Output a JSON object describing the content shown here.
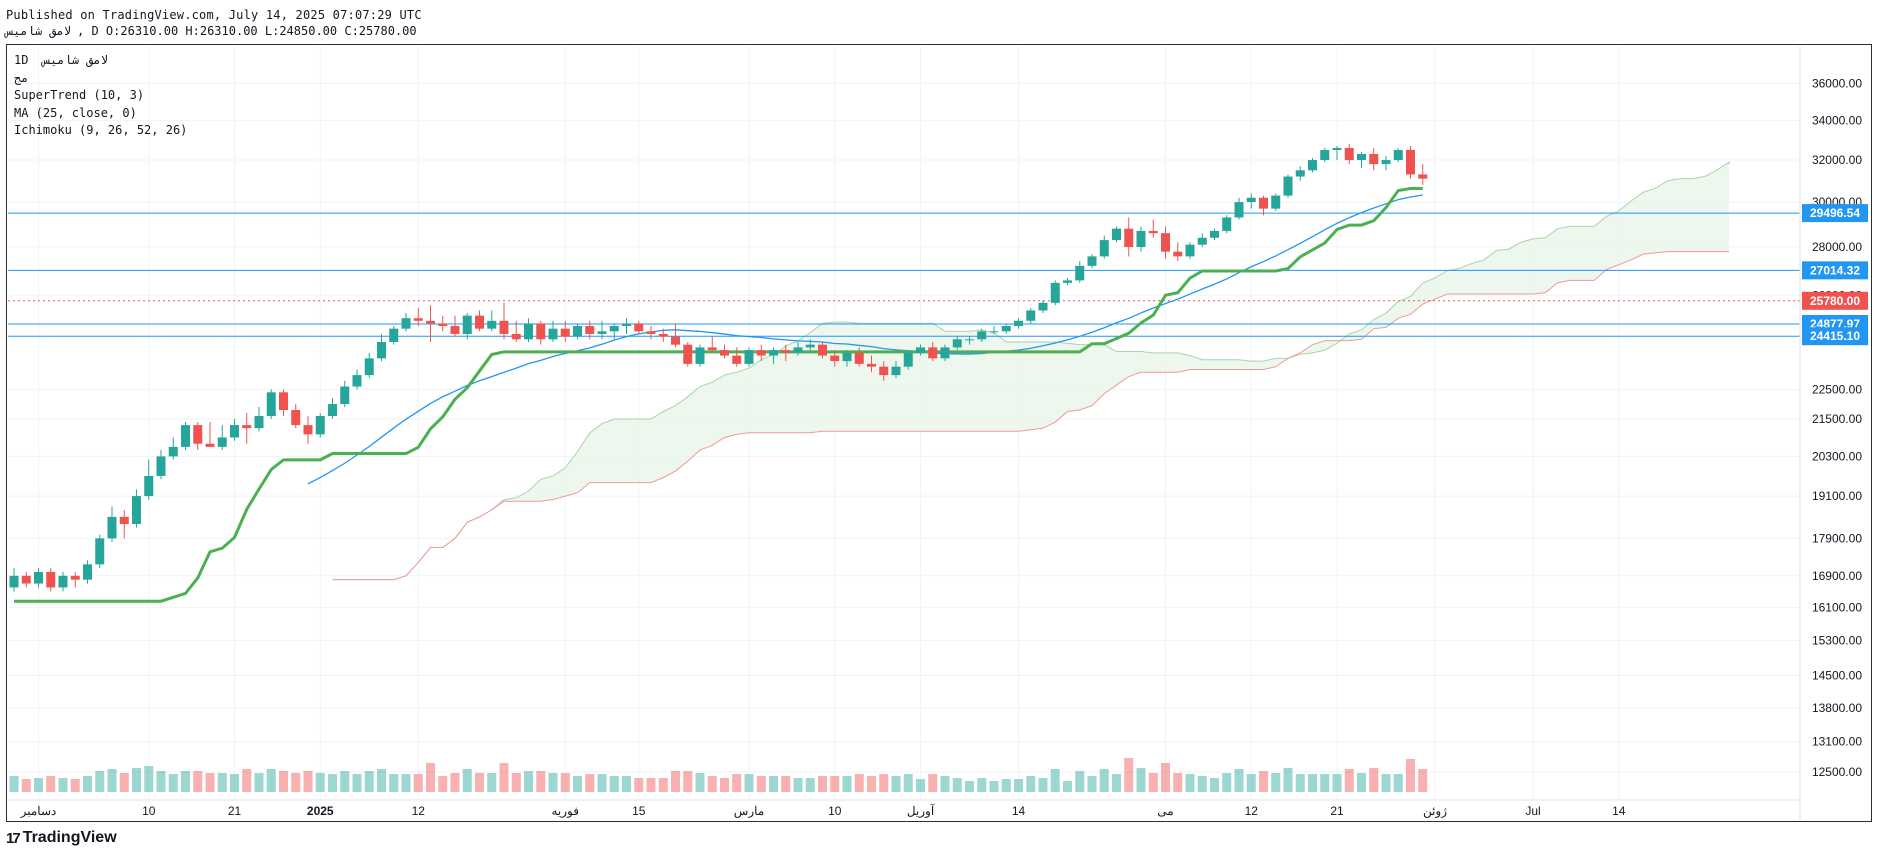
{
  "header": {
    "published": "Published on TradingView.com, July 14, 2025 07:07:29 UTC",
    "symbol": "لامق شامیس",
    "ohlc": ", D O:26310.00 H:26310.00 L:24850.00 C:25780.00"
  },
  "legend": {
    "symbol_line": "1D  لامق شامیس",
    "sub": "مج",
    "supertrend": "SuperTrend (10, 3)",
    "ma": "MA (25, close, 0)",
    "ichimoku": "Ichimoku (9, 26, 52, 26)"
  },
  "footer": {
    "logo_text": "TradingView",
    "logo_mark": "17"
  },
  "colors": {
    "up": "#26a69a",
    "down": "#ef5350",
    "supertrend_up": "#4caf50",
    "supertrend_down": "#a94442",
    "ma": "#2196f3",
    "cloud": "#e8f5e9",
    "cloud_line": "#a5d6a7",
    "span_b": "#ef9a9a",
    "hline": "#2196f3",
    "price_line": "#ef5350"
  },
  "chart_data": {
    "type": "candlestick",
    "y_axis": {
      "scale": "log",
      "range": [
        12200,
        37200
      ],
      "ticks": [
        36000,
        34000,
        32000,
        30000,
        28000,
        26000,
        22500,
        21500,
        20300,
        19100,
        17900,
        16900,
        16100,
        15300,
        14500,
        13800,
        13100,
        12500
      ],
      "tick_labels": [
        "36000.00",
        "34000.00",
        "32000.00",
        "30000.00",
        "28000.00",
        "26000.00",
        "22500.00",
        "21500.00",
        "20300.00",
        "19100.00",
        "17900.00",
        "16900.00",
        "16100.00",
        "15300.00",
        "14500.00",
        "13800.00",
        "13100.00",
        "12500.00"
      ]
    },
    "x_axis": {
      "labels": [
        "دسامبر",
        "10",
        "21",
        "2025",
        "12",
        "فوریه",
        "15",
        "مارس",
        "10",
        "آوریل",
        "14",
        "می",
        "12",
        "21",
        "ژوئن",
        "Jul",
        "14"
      ],
      "label_bar_index": [
        2,
        11,
        18,
        25,
        33,
        45,
        51,
        60,
        67,
        74,
        82,
        94,
        101,
        108,
        116,
        124,
        131
      ],
      "bold_index": [
        3
      ]
    },
    "horizontal_levels": [
      {
        "value": 29496.54,
        "label": "29496.54"
      },
      {
        "value": 27014.32,
        "label": "27014.32"
      },
      {
        "value": 24877.97,
        "label": "24877.97"
      },
      {
        "value": 24415.1,
        "label": "24415.10"
      }
    ],
    "last_price": {
      "value": 25780.0,
      "label": "25780.00"
    },
    "candles": [
      [
        16600,
        17100,
        16500,
        16900
      ],
      [
        16900,
        17000,
        16600,
        16700
      ],
      [
        16700,
        17100,
        16600,
        17000
      ],
      [
        17000,
        17100,
        16500,
        16600
      ],
      [
        16600,
        17000,
        16500,
        16900
      ],
      [
        16900,
        17000,
        16600,
        16800
      ],
      [
        16800,
        17300,
        16700,
        17200
      ],
      [
        17200,
        18000,
        17100,
        17900
      ],
      [
        17900,
        18800,
        17800,
        18500
      ],
      [
        18500,
        18700,
        17900,
        18300
      ],
      [
        18300,
        19300,
        18200,
        19100
      ],
      [
        19100,
        20200,
        19000,
        19700
      ],
      [
        19700,
        20500,
        19600,
        20300
      ],
      [
        20300,
        20900,
        20200,
        20600
      ],
      [
        20600,
        21400,
        20500,
        21300
      ],
      [
        21300,
        21400,
        20500,
        20700
      ],
      [
        20700,
        21400,
        20600,
        20600
      ],
      [
        20600,
        21300,
        20500,
        20900
      ],
      [
        20900,
        21500,
        20800,
        21300
      ],
      [
        21300,
        21700,
        20700,
        21200
      ],
      [
        21200,
        21900,
        21100,
        21600
      ],
      [
        21600,
        22500,
        21500,
        22400
      ],
      [
        22400,
        22500,
        21600,
        21800
      ],
      [
        21800,
        22000,
        21200,
        21300
      ],
      [
        21300,
        21600,
        20700,
        21000
      ],
      [
        21000,
        21700,
        20900,
        21600
      ],
      [
        21600,
        22200,
        21500,
        22000
      ],
      [
        22000,
        22800,
        21900,
        22600
      ],
      [
        22600,
        23200,
        22500,
        23000
      ],
      [
        23000,
        23800,
        22900,
        23600
      ],
      [
        23600,
        24500,
        23500,
        24200
      ],
      [
        24200,
        24800,
        24100,
        24700
      ],
      [
        24700,
        25300,
        24600,
        25100
      ],
      [
        25100,
        25500,
        24800,
        25000
      ],
      [
        25000,
        25600,
        24200,
        24900
      ],
      [
        24900,
        25200,
        24600,
        24800
      ],
      [
        24800,
        25200,
        24400,
        24500
      ],
      [
        24500,
        25300,
        24300,
        25200
      ],
      [
        25200,
        25400,
        24600,
        24700
      ],
      [
        24700,
        25400,
        24600,
        25000
      ],
      [
        25000,
        25700,
        24300,
        24500
      ],
      [
        24500,
        25000,
        24200,
        24300
      ],
      [
        24300,
        25100,
        24200,
        24900
      ],
      [
        24900,
        25000,
        24100,
        24300
      ],
      [
        24300,
        25000,
        24200,
        24700
      ],
      [
        24700,
        25000,
        24200,
        24400
      ],
      [
        24400,
        24900,
        24300,
        24800
      ],
      [
        24800,
        25000,
        24300,
        24500
      ],
      [
        24500,
        25000,
        24300,
        24600
      ],
      [
        24600,
        24900,
        24300,
        24800
      ],
      [
        24800,
        25100,
        24500,
        24900
      ],
      [
        24900,
        25000,
        24500,
        24600
      ],
      [
        24600,
        24800,
        24300,
        24500
      ],
      [
        24500,
        24700,
        24200,
        24400
      ],
      [
        24400,
        24900,
        24000,
        24100
      ],
      [
        24100,
        24200,
        23300,
        23400
      ],
      [
        23400,
        24100,
        23300,
        24000
      ],
      [
        24000,
        24400,
        23800,
        23900
      ],
      [
        23900,
        24100,
        23600,
        23700
      ],
      [
        23700,
        24000,
        23300,
        23400
      ],
      [
        23400,
        24000,
        23300,
        23900
      ],
      [
        23900,
        24100,
        23500,
        23700
      ],
      [
        23700,
        24000,
        23400,
        23900
      ],
      [
        23900,
        24100,
        23500,
        23800
      ],
      [
        23800,
        24200,
        23700,
        24000
      ],
      [
        24000,
        24300,
        23800,
        24100
      ],
      [
        24100,
        24200,
        23600,
        23700
      ],
      [
        23700,
        23900,
        23300,
        23500
      ],
      [
        23500,
        23900,
        23300,
        23800
      ],
      [
        23800,
        24000,
        23300,
        23400
      ],
      [
        23400,
        23700,
        23100,
        23300
      ],
      [
        23300,
        23500,
        22800,
        23000
      ],
      [
        23000,
        23500,
        22900,
        23300
      ],
      [
        23300,
        23900,
        23200,
        23800
      ],
      [
        23800,
        24100,
        23700,
        24000
      ],
      [
        24000,
        24200,
        23500,
        23600
      ],
      [
        23600,
        24100,
        23500,
        24000
      ],
      [
        24000,
        24400,
        23900,
        24300
      ],
      [
        24300,
        24400,
        24100,
        24300
      ],
      [
        24300,
        24700,
        24200,
        24600
      ],
      [
        24600,
        24800,
        24500,
        24600
      ],
      [
        24600,
        24900,
        24500,
        24800
      ],
      [
        24800,
        25100,
        24700,
        25000
      ],
      [
        25000,
        25500,
        24900,
        25400
      ],
      [
        25400,
        25800,
        25300,
        25700
      ],
      [
        25700,
        26600,
        25600,
        26500
      ],
      [
        26500,
        26700,
        26400,
        26600
      ],
      [
        26600,
        27400,
        26500,
        27200
      ],
      [
        27200,
        27700,
        27100,
        27600
      ],
      [
        27600,
        28500,
        27500,
        28300
      ],
      [
        28300,
        28900,
        28200,
        28800
      ],
      [
        28800,
        29300,
        27600,
        28000
      ],
      [
        28000,
        28900,
        27800,
        28700
      ],
      [
        28700,
        29200,
        28400,
        28600
      ],
      [
        28600,
        28900,
        27500,
        27800
      ],
      [
        27800,
        28200,
        27400,
        27600
      ],
      [
        27600,
        28200,
        27500,
        28100
      ],
      [
        28100,
        28600,
        28000,
        28400
      ],
      [
        28400,
        28800,
        28300,
        28700
      ],
      [
        28700,
        29400,
        28600,
        29300
      ],
      [
        29300,
        30200,
        29200,
        30000
      ],
      [
        30000,
        30400,
        29700,
        30200
      ],
      [
        30200,
        30300,
        29400,
        29700
      ],
      [
        29700,
        30400,
        29600,
        30300
      ],
      [
        30300,
        31300,
        30200,
        31200
      ],
      [
        31200,
        31700,
        31000,
        31500
      ],
      [
        31500,
        32100,
        31400,
        32000
      ],
      [
        32000,
        32600,
        31900,
        32500
      ],
      [
        32500,
        32700,
        32000,
        32600
      ],
      [
        32600,
        32800,
        31800,
        32000
      ],
      [
        32000,
        32400,
        31600,
        32300
      ],
      [
        32300,
        32600,
        31500,
        31800
      ],
      [
        31800,
        32200,
        31500,
        32000
      ],
      [
        32000,
        32600,
        31900,
        32500
      ],
      [
        32500,
        32700,
        31100,
        31300
      ],
      [
        31300,
        31800,
        30800,
        31100
      ]
    ],
    "volume": {
      "range": [
        12200,
        16800
      ],
      "note": "bars at bottom of pane"
    },
    "indicators": [
      "SuperTrend (10, 3)",
      "MA (25, close, 0)",
      "Ichimoku (9, 26, 52, 26)"
    ]
  }
}
